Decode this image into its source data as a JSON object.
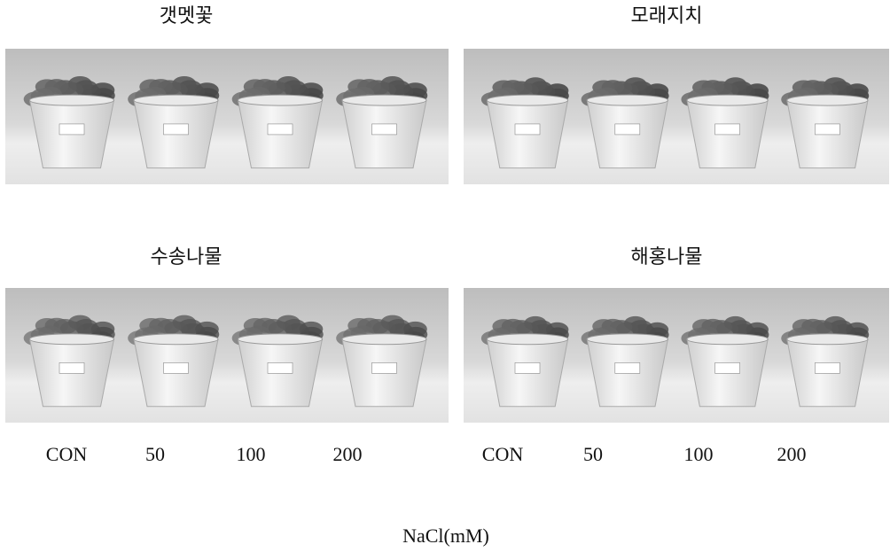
{
  "panels": [
    {
      "title": "갯멧꽃"
    },
    {
      "title": "모래지치"
    },
    {
      "title": "수송나물"
    },
    {
      "title": "해홍나물"
    }
  ],
  "treatment_rows": [
    [
      "CON",
      "50",
      "100",
      "200"
    ],
    [
      "CON",
      "50",
      "100",
      "200"
    ]
  ],
  "axis_label": "NaCl(mM)"
}
